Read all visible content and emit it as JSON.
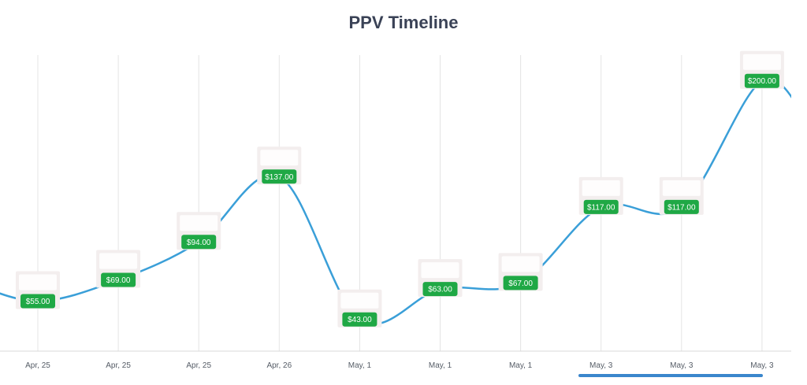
{
  "chart_data": {
    "type": "line",
    "title": "PPV Timeline",
    "xlabel": "",
    "ylabel": "",
    "categories": [
      "Apr, 25",
      "Apr, 25",
      "Apr, 25",
      "Apr, 26",
      "May, 1",
      "May, 1",
      "May, 1",
      "May, 3",
      "May, 3",
      "May, 3"
    ],
    "values": [
      55.0,
      69.0,
      94.0,
      137.0,
      43.0,
      63.0,
      67.0,
      117.0,
      117.0,
      200.0
    ],
    "value_labels": [
      "$55.00",
      "$69.00",
      "$94.00",
      "$137.00",
      "$43.00",
      "$63.00",
      "$67.00",
      "$117.00",
      "$117.00",
      "$200.00"
    ],
    "grid": true,
    "line_color": "#3a9fd8",
    "label_color": "#1fa845",
    "scrollbar_color": "#3a86cc"
  }
}
